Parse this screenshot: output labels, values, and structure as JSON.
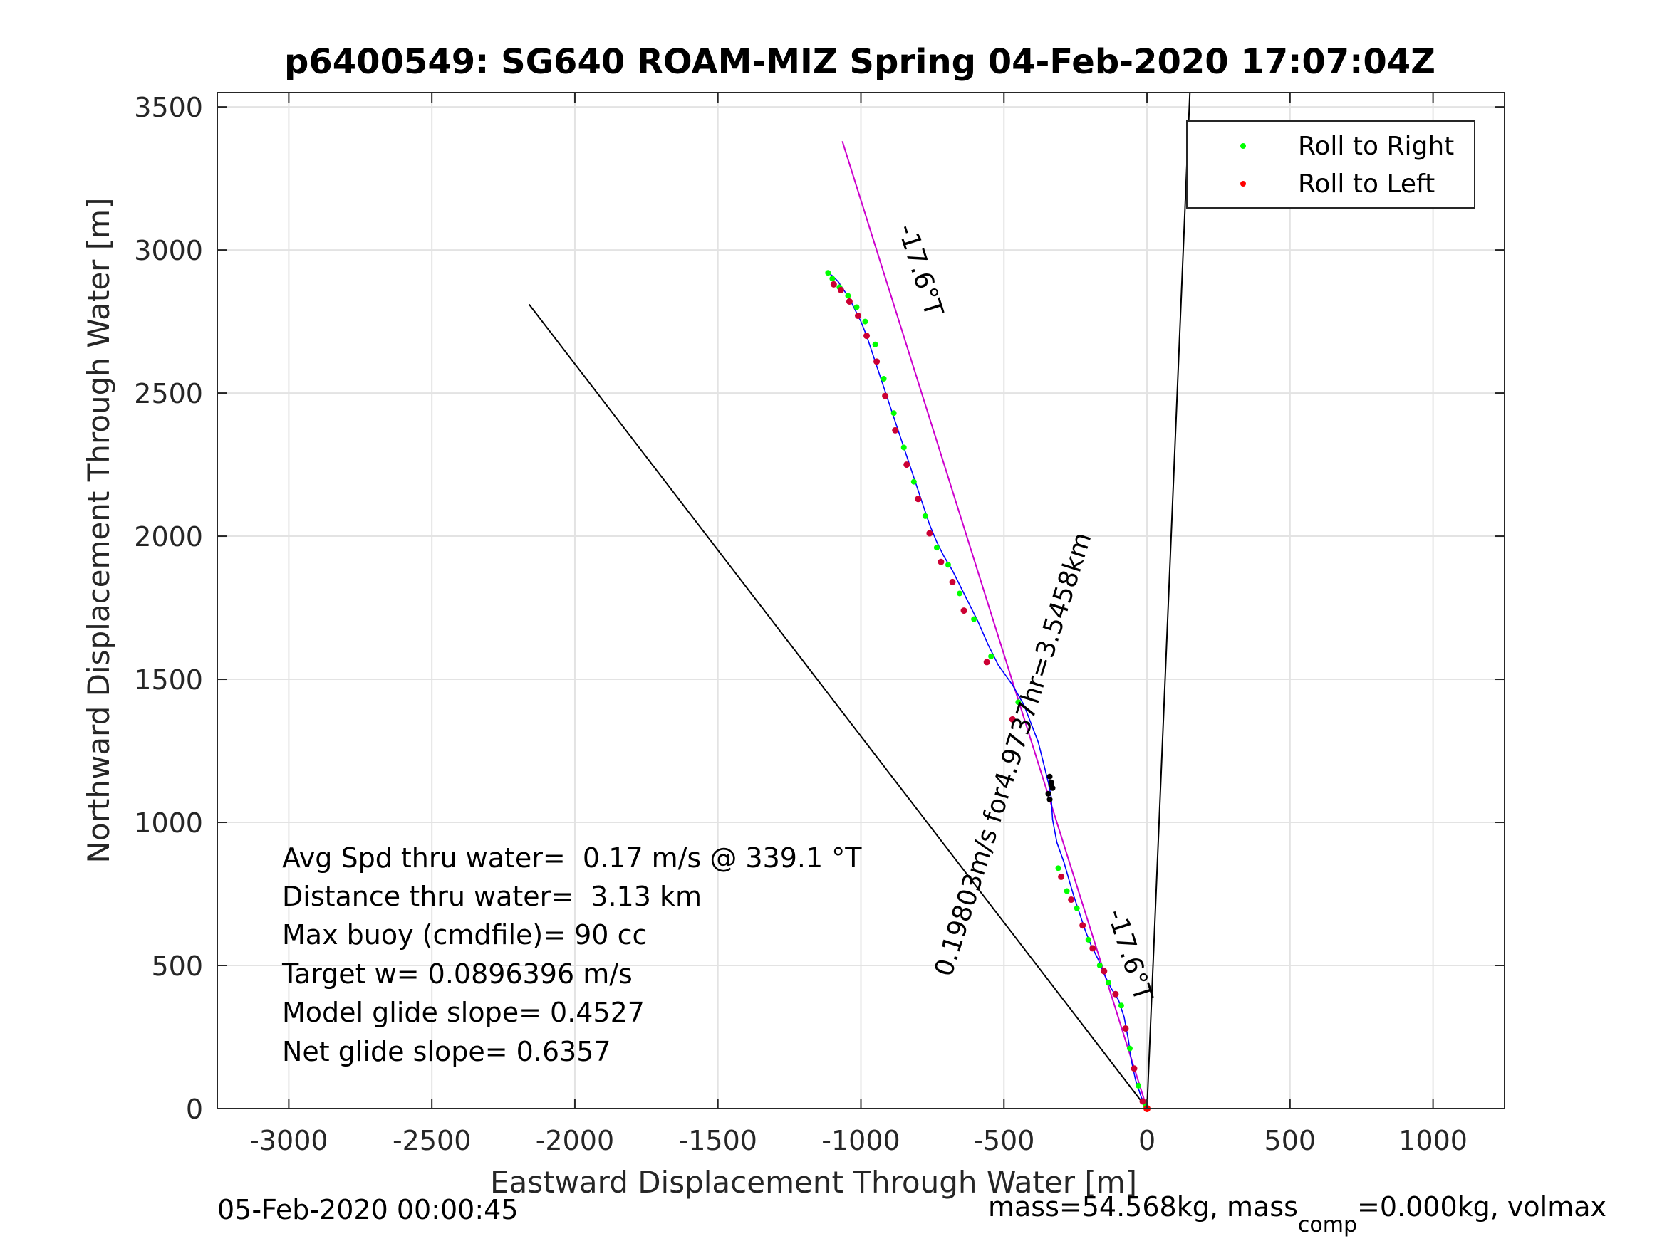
{
  "chart_data": {
    "type": "line",
    "title": "p6400549: SG640 ROAM-MIZ Spring 04-Feb-2020 17:07:04Z",
    "xlabel": "Eastward Displacement Through Water [m]",
    "ylabel": "Northward Displacement Through Water [m]",
    "xlim": [
      -3250,
      1250
    ],
    "ylim": [
      0,
      3550
    ],
    "xticks": [
      -3000,
      -2500,
      -2000,
      -1500,
      -1000,
      -500,
      0,
      500,
      1000
    ],
    "yticks": [
      0,
      500,
      1000,
      1500,
      2000,
      2500,
      3000,
      3500
    ],
    "grid": true,
    "legend": {
      "position": "top-right",
      "entries": [
        {
          "label": "Roll to Right",
          "color": "#00ff00"
        },
        {
          "label": "Roll to Left",
          "color": "#ff0000"
        }
      ]
    },
    "reference_lines": [
      {
        "color": "#000000",
        "x": [
          0,
          -2160
        ],
        "y": [
          0,
          2810
        ]
      },
      {
        "color": "#000000",
        "x": [
          0,
          150
        ],
        "y": [
          0,
          3550
        ]
      },
      {
        "color": "#cc00cc",
        "x": [
          0,
          -1065
        ],
        "y": [
          0,
          3380
        ]
      }
    ],
    "track": {
      "color": "#0000ff",
      "x": [
        0,
        -20,
        -40,
        -55,
        -65,
        -80,
        -100,
        -125,
        -150,
        -170,
        -195,
        -215,
        -235,
        -255,
        -270,
        -290,
        -315,
        -330,
        -335,
        -345,
        -380,
        -430,
        -470,
        -520,
        -555,
        -590,
        -620,
        -650,
        -680,
        -710,
        -735,
        -760,
        -780,
        -800,
        -820,
        -840,
        -860,
        -880,
        -900,
        -920,
        -940,
        -960,
        -980,
        -1000,
        -1020,
        -1040,
        -1060,
        -1080,
        -1100,
        -1115
      ],
      "y": [
        0,
        40,
        100,
        170,
        240,
        320,
        380,
        420,
        470,
        520,
        570,
        620,
        680,
        740,
        790,
        860,
        930,
        1010,
        1090,
        1140,
        1280,
        1410,
        1480,
        1550,
        1620,
        1700,
        1760,
        1820,
        1880,
        1930,
        1980,
        2040,
        2100,
        2160,
        2220,
        2280,
        2340,
        2400,
        2460,
        2520,
        2580,
        2640,
        2700,
        2750,
        2790,
        2830,
        2860,
        2890,
        2910,
        2920
      ]
    },
    "roll_right": {
      "x": [
        -5,
        -30,
        -60,
        -90,
        -135,
        -165,
        -205,
        -245,
        -280,
        -310,
        -450,
        -545,
        -605,
        -655,
        -695,
        -735,
        -775,
        -815,
        -850,
        -885,
        -920,
        -950,
        -985,
        -1015,
        -1045,
        -1075,
        -1100,
        -1115
      ],
      "y": [
        10,
        80,
        210,
        360,
        440,
        500,
        590,
        700,
        760,
        840,
        1420,
        1580,
        1710,
        1800,
        1900,
        1960,
        2070,
        2190,
        2310,
        2430,
        2550,
        2670,
        2750,
        2800,
        2840,
        2870,
        2900,
        2920
      ]
    },
    "roll_left": {
      "x": [
        -15,
        -45,
        -75,
        -110,
        -150,
        -190,
        -225,
        -265,
        -300,
        -470,
        -560,
        -640,
        -680,
        -720,
        -760,
        -800,
        -840,
        -880,
        -915,
        -945,
        -980,
        -1010,
        -1040,
        -1070,
        -1095
      ],
      "y": [
        25,
        140,
        280,
        400,
        480,
        560,
        640,
        730,
        810,
        1360,
        1560,
        1740,
        1840,
        1910,
        2010,
        2130,
        2250,
        2370,
        2490,
        2610,
        2700,
        2770,
        2820,
        2860,
        2880
      ]
    },
    "cluster": {
      "x": [
        -330,
        -335,
        -340,
        -345,
        -340,
        -335
      ],
      "y": [
        1120,
        1140,
        1160,
        1100,
        1080,
        1130
      ]
    },
    "annotations": {
      "heading_top": "-17.6°T",
      "heading_bottom": "-17.6°T",
      "speed_distance": "0.19803m/s for4.9737hr=3.5458km"
    },
    "stats": [
      "Avg Spd thru water=  0.17 m/s @ 339.1 °T",
      "Distance thru water=  3.13 km",
      "Max buoy (cmdfile)= 90 cc",
      "Target w= 0.0896396 m/s",
      "Model glide slope= 0.4527",
      "Net glide slope= 0.6357"
    ],
    "footer_left": "05-Feb-2020 00:00:45",
    "footer_right_a": "mass=54.568kg, mass",
    "footer_right_sub": "comp",
    "footer_right_b": "=0.000kg, volmax"
  }
}
